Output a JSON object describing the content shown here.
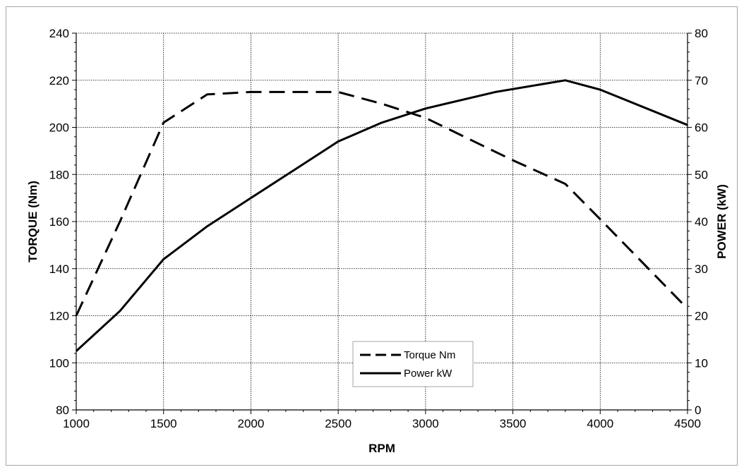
{
  "chart_data": {
    "type": "line",
    "title": "",
    "xlabel": "RPM",
    "ylabel_left": "TORQUE (Nm)",
    "ylabel_right": "POWER (kW)",
    "xlim": [
      1000,
      4500
    ],
    "ylim_left": [
      80,
      240
    ],
    "ylim_right": [
      0,
      80
    ],
    "x_ticks": [
      1000,
      1500,
      2000,
      2500,
      3000,
      3500,
      4000,
      4500
    ],
    "y_ticks_left": [
      80,
      100,
      120,
      140,
      160,
      180,
      200,
      220,
      240
    ],
    "y_ticks_right": [
      0,
      10,
      20,
      30,
      40,
      50,
      60,
      70,
      80
    ],
    "grid": true,
    "legend_position": "bottom-center",
    "series": [
      {
        "name": "Torque Nm",
        "axis": "left",
        "style": "dashed",
        "color": "#000000",
        "x": [
          1000,
          1250,
          1500,
          1750,
          2000,
          2250,
          2500,
          2750,
          3000,
          3250,
          3500,
          3800,
          4000,
          4250,
          4500
        ],
        "y": [
          120,
          160,
          202,
          214,
          215,
          215,
          215,
          210,
          204,
          195,
          186,
          176,
          161,
          142,
          123
        ]
      },
      {
        "name": "Power kW",
        "axis": "right",
        "style": "solid",
        "color": "#000000",
        "x": [
          1000,
          1250,
          1500,
          1750,
          2000,
          2250,
          2500,
          2750,
          3000,
          3400,
          3800,
          4000,
          4500
        ],
        "y": [
          12.5,
          21,
          32,
          39,
          45,
          51,
          57,
          61,
          64,
          67.5,
          70,
          68,
          60.5
        ]
      }
    ]
  }
}
